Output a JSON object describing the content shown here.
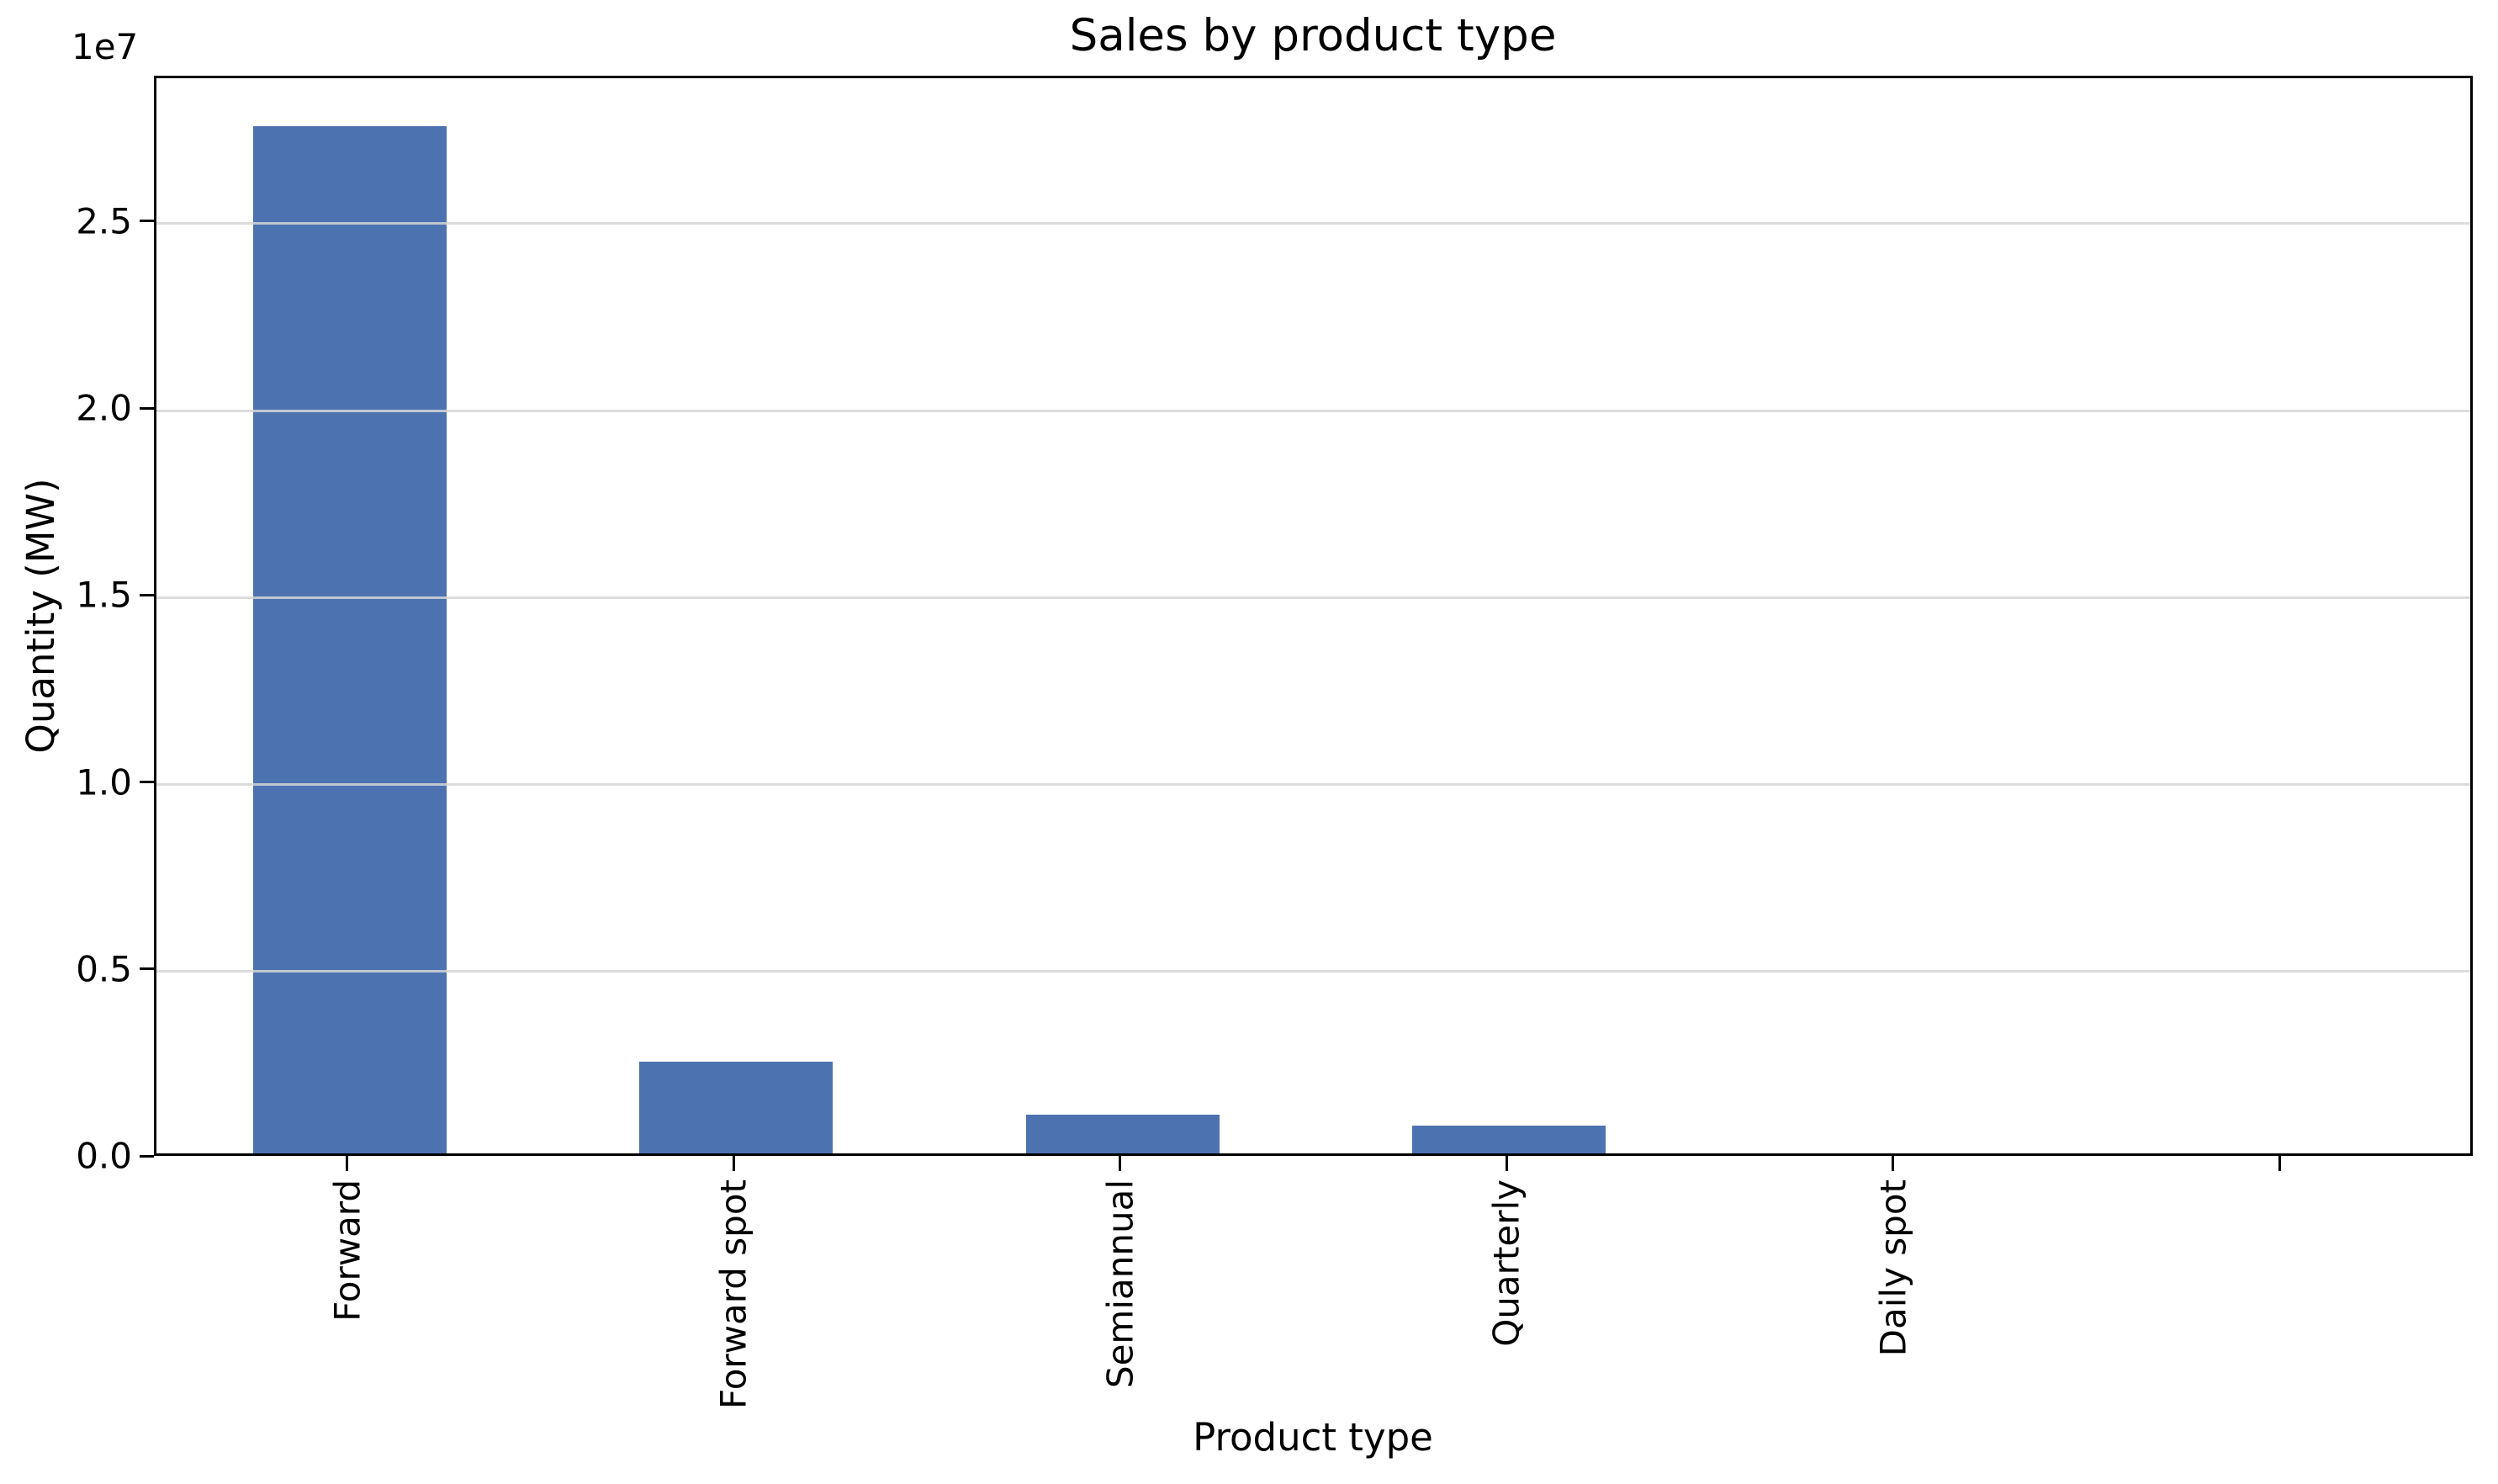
{
  "figure": {
    "background": "#ffffff",
    "text_color": "#000000",
    "spine_color": "#000000"
  },
  "chart_data": {
    "type": "bar",
    "title": "Sales by product type",
    "xlabel": "Product type",
    "ylabel": "Quantity (MW)",
    "offset_text": "1e7",
    "categories": [
      "Forward",
      "Forward spot",
      "Semiannual",
      "Quarterly",
      "Daily spot",
      ""
    ],
    "values": [
      27480000,
      2450000,
      1040000,
      740000,
      0,
      0
    ],
    "bar_color": "#4C72B0",
    "bar_width_fraction": 0.5,
    "ylim": [
      0,
      28890000
    ],
    "yticks": [
      0,
      5000000,
      10000000,
      15000000,
      20000000,
      25000000
    ],
    "ytick_labels": [
      "0.0",
      "0.5",
      "1.0",
      "1.5",
      "2.0",
      "2.5"
    ],
    "grid": true,
    "grid_axis": "y",
    "gridline_color": "rgba(214,214,214,0.85)",
    "legend": null
  }
}
